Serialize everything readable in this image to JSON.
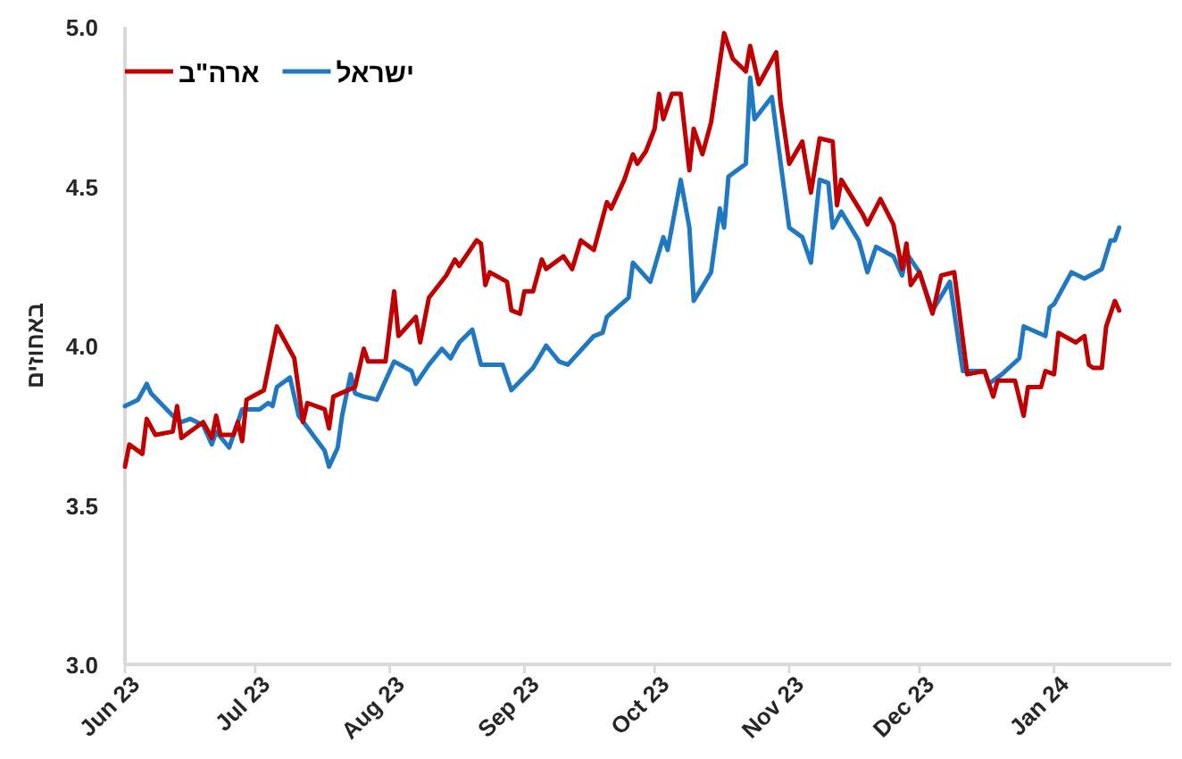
{
  "chart_data": {
    "type": "line",
    "ylabel": "באחוזים",
    "xlim": [
      "2023-06-01",
      "2024-01-28"
    ],
    "ylim": [
      3.0,
      5.0
    ],
    "yticks": [
      {
        "value": 3.0,
        "label": "3.0"
      },
      {
        "value": 3.5,
        "label": "3.5"
      },
      {
        "value": 4.0,
        "label": "4.0"
      },
      {
        "value": 4.5,
        "label": "4.5"
      },
      {
        "value": 5.0,
        "label": "5.0"
      }
    ],
    "xticks": [
      {
        "value": "2023-06-01",
        "label": "Jun 23"
      },
      {
        "value": "2023-07-01",
        "label": "Jul 23"
      },
      {
        "value": "2023-08-01",
        "label": "Aug 23"
      },
      {
        "value": "2023-09-01",
        "label": "Sep 23"
      },
      {
        "value": "2023-10-01",
        "label": "Oct 23"
      },
      {
        "value": "2023-11-01",
        "label": "Nov 23"
      },
      {
        "value": "2023-12-01",
        "label": "Dec 23"
      },
      {
        "value": "2024-01-01",
        "label": "Jan 24"
      }
    ],
    "grid": false,
    "legend": "top left",
    "marker": "none",
    "line_style": "solid",
    "series": [
      {
        "name": "ישראל",
        "color": "#1f78c1",
        "x": [
          "2023-06-01",
          "2023-06-04",
          "2023-06-06",
          "2023-06-07",
          "2023-06-12",
          "2023-06-14",
          "2023-06-16",
          "2023-06-19",
          "2023-06-21",
          "2023-06-22",
          "2023-06-25",
          "2023-06-28",
          "2023-07-02",
          "2023-07-04",
          "2023-07-05",
          "2023-07-06",
          "2023-07-09",
          "2023-07-11",
          "2023-07-17",
          "2023-07-18",
          "2023-07-20",
          "2023-07-21",
          "2023-07-23",
          "2023-07-24",
          "2023-07-26",
          "2023-07-29",
          "2023-08-02",
          "2023-08-06",
          "2023-08-07",
          "2023-08-10",
          "2023-08-13",
          "2023-08-15",
          "2023-08-17",
          "2023-08-20",
          "2023-08-22",
          "2023-08-27",
          "2023-08-29",
          "2023-09-03",
          "2023-09-06",
          "2023-09-09",
          "2023-09-11",
          "2023-09-17",
          "2023-09-19",
          "2023-09-20",
          "2023-09-25",
          "2023-09-26",
          "2023-09-30",
          "2023-10-03",
          "2023-10-04",
          "2023-10-07",
          "2023-10-09",
          "2023-10-10",
          "2023-10-14",
          "2023-10-16",
          "2023-10-17",
          "2023-10-18",
          "2023-10-22",
          "2023-10-23",
          "2023-10-24",
          "2023-10-28",
          "2023-11-01",
          "2023-11-04",
          "2023-11-06",
          "2023-11-08",
          "2023-11-10",
          "2023-11-11",
          "2023-11-13",
          "2023-11-17",
          "2023-11-19",
          "2023-11-21",
          "2023-11-25",
          "2023-11-27",
          "2023-11-28",
          "2023-12-01",
          "2023-12-04",
          "2023-12-08",
          "2023-12-11",
          "2023-12-16",
          "2023-12-17",
          "2023-12-20",
          "2023-12-24",
          "2023-12-25",
          "2023-12-30",
          "2023-12-31",
          "2024-01-01",
          "2024-01-05",
          "2024-01-08",
          "2024-01-12",
          "2024-01-14",
          "2024-01-15",
          "2024-01-16"
        ],
        "values": [
          3.81,
          3.83,
          3.88,
          3.85,
          3.78,
          3.76,
          3.77,
          3.75,
          3.69,
          3.73,
          3.68,
          3.8,
          3.8,
          3.82,
          3.81,
          3.87,
          3.9,
          3.78,
          3.67,
          3.62,
          3.68,
          3.78,
          3.91,
          3.85,
          3.84,
          3.83,
          3.95,
          3.92,
          3.88,
          3.94,
          3.99,
          3.96,
          4.01,
          4.05,
          3.94,
          3.94,
          3.86,
          3.93,
          4.0,
          3.95,
          3.94,
          4.03,
          4.04,
          4.09,
          4.15,
          4.26,
          4.2,
          4.34,
          4.3,
          4.52,
          4.37,
          4.14,
          4.23,
          4.43,
          4.37,
          4.53,
          4.57,
          4.84,
          4.71,
          4.78,
          4.37,
          4.34,
          4.26,
          4.52,
          4.51,
          4.37,
          4.42,
          4.33,
          4.23,
          4.31,
          4.28,
          4.22,
          4.29,
          4.23,
          4.11,
          4.2,
          3.92,
          3.92,
          3.88,
          3.91,
          3.96,
          4.06,
          4.03,
          4.12,
          4.13,
          4.23,
          4.21,
          4.24,
          4.33,
          4.33,
          4.37
        ]
      },
      {
        "name": "ארה\"ב",
        "color": "#c00000",
        "x": [
          "2023-06-01",
          "2023-06-02",
          "2023-06-05",
          "2023-06-06",
          "2023-06-08",
          "2023-06-12",
          "2023-06-13",
          "2023-06-14",
          "2023-06-19",
          "2023-06-21",
          "2023-06-22",
          "2023-06-23",
          "2023-06-26",
          "2023-06-27",
          "2023-06-28",
          "2023-06-29",
          "2023-07-03",
          "2023-07-06",
          "2023-07-10",
          "2023-07-12",
          "2023-07-13",
          "2023-07-17",
          "2023-07-18",
          "2023-07-19",
          "2023-07-24",
          "2023-07-26",
          "2023-07-27",
          "2023-07-31",
          "2023-08-02",
          "2023-08-03",
          "2023-08-07",
          "2023-08-08",
          "2023-08-10",
          "2023-08-14",
          "2023-08-16",
          "2023-08-17",
          "2023-08-21",
          "2023-08-22",
          "2023-08-23",
          "2023-08-24",
          "2023-08-28",
          "2023-08-29",
          "2023-08-31",
          "2023-09-01",
          "2023-09-03",
          "2023-09-05",
          "2023-09-06",
          "2023-09-10",
          "2023-09-12",
          "2023-09-14",
          "2023-09-17",
          "2023-09-20",
          "2023-09-21",
          "2023-09-24",
          "2023-09-26",
          "2023-09-27",
          "2023-09-29",
          "2023-10-01",
          "2023-10-02",
          "2023-10-03",
          "2023-10-05",
          "2023-10-07",
          "2023-10-09",
          "2023-10-10",
          "2023-10-12",
          "2023-10-14",
          "2023-10-17",
          "2023-10-19",
          "2023-10-22",
          "2023-10-23",
          "2023-10-25",
          "2023-10-29",
          "2023-10-30",
          "2023-11-01",
          "2023-11-04",
          "2023-11-06",
          "2023-11-08",
          "2023-11-11",
          "2023-11-12",
          "2023-11-13",
          "2023-11-18",
          "2023-11-19",
          "2023-11-22",
          "2023-11-25",
          "2023-11-27",
          "2023-11-28",
          "2023-11-29",
          "2023-12-01",
          "2023-12-04",
          "2023-12-06",
          "2023-12-09",
          "2023-12-12",
          "2023-12-16",
          "2023-12-18",
          "2023-12-19",
          "2023-12-23",
          "2023-12-25",
          "2023-12-26",
          "2023-12-29",
          "2023-12-30",
          "2024-01-01",
          "2024-01-02",
          "2024-01-06",
          "2024-01-08",
          "2024-01-09",
          "2024-01-10",
          "2024-01-12",
          "2024-01-13",
          "2024-01-15",
          "2024-01-16"
        ],
        "values": [
          3.62,
          3.69,
          3.66,
          3.77,
          3.72,
          3.73,
          3.81,
          3.71,
          3.76,
          3.71,
          3.78,
          3.72,
          3.72,
          3.76,
          3.7,
          3.83,
          3.86,
          4.06,
          3.96,
          3.76,
          3.82,
          3.8,
          3.74,
          3.84,
          3.87,
          3.99,
          3.95,
          3.95,
          4.17,
          4.03,
          4.09,
          4.01,
          4.15,
          4.22,
          4.27,
          4.25,
          4.33,
          4.32,
          4.19,
          4.23,
          4.2,
          4.11,
          4.1,
          4.17,
          4.17,
          4.27,
          4.24,
          4.28,
          4.24,
          4.33,
          4.3,
          4.45,
          4.43,
          4.52,
          4.6,
          4.57,
          4.61,
          4.68,
          4.79,
          4.71,
          4.79,
          4.79,
          4.55,
          4.68,
          4.6,
          4.7,
          4.98,
          4.9,
          4.86,
          4.94,
          4.82,
          4.92,
          4.76,
          4.57,
          4.64,
          4.48,
          4.65,
          4.64,
          4.44,
          4.52,
          4.41,
          4.38,
          4.46,
          4.38,
          4.24,
          4.32,
          4.19,
          4.23,
          4.1,
          4.22,
          4.23,
          3.91,
          3.92,
          3.84,
          3.89,
          3.89,
          3.78,
          3.87,
          3.87,
          3.92,
          3.91,
          4.04,
          4.01,
          4.03,
          3.94,
          3.93,
          3.93,
          4.06,
          4.14,
          4.11
        ]
      }
    ]
  }
}
